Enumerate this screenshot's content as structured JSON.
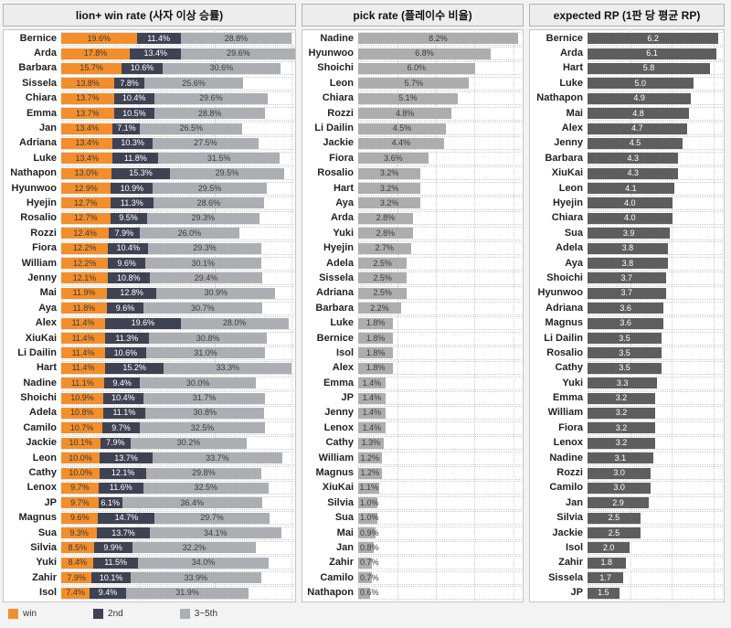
{
  "chart_data": [
    {
      "type": "bar",
      "orientation": "horizontal",
      "stacked": true,
      "title": "lion+ win rate (사자 이상 승률)",
      "unit": "%",
      "xmax": 60.5,
      "gridlines": [
        20,
        40,
        60
      ],
      "categories": [
        "Bernice",
        "Arda",
        "Barbara",
        "Sissela",
        "Chiara",
        "Emma",
        "Jan",
        "Adriana",
        "Luke",
        "Nathapon",
        "Hyunwoo",
        "Hyejin",
        "Rosalio",
        "Rozzi",
        "Fiora",
        "William",
        "Jenny",
        "Mai",
        "Aya",
        "Alex",
        "XiuKai",
        "Li Dailin",
        "Hart",
        "Nadine",
        "Shoichi",
        "Adela",
        "Camilo",
        "Jackie",
        "Leon",
        "Cathy",
        "Lenox",
        "JP",
        "Magnus",
        "Sua",
        "Silvia",
        "Yuki",
        "Zahir",
        "Isol"
      ],
      "series": [
        {
          "name": "win",
          "color": "#F28E2B",
          "label_color": "#3C3C3C",
          "values": [
            19.6,
            17.8,
            15.7,
            13.8,
            13.7,
            13.7,
            13.4,
            13.4,
            13.4,
            13.0,
            12.9,
            12.7,
            12.7,
            12.4,
            12.2,
            12.2,
            12.1,
            11.9,
            11.8,
            11.4,
            11.4,
            11.4,
            11.4,
            11.1,
            10.9,
            10.8,
            10.7,
            10.1,
            10.0,
            10.0,
            9.7,
            9.7,
            9.6,
            9.3,
            8.5,
            8.4,
            7.9,
            7.4
          ]
        },
        {
          "name": "2nd",
          "color": "#3F4253",
          "label_color": "#FFFFFF",
          "values": [
            11.4,
            13.4,
            10.6,
            7.8,
            10.4,
            10.5,
            7.1,
            10.3,
            11.8,
            15.3,
            10.9,
            11.3,
            9.5,
            7.9,
            10.4,
            9.6,
            10.8,
            12.8,
            9.6,
            19.6,
            11.3,
            10.6,
            15.2,
            9.4,
            10.4,
            11.1,
            9.7,
            7.9,
            13.7,
            12.1,
            11.6,
            6.1,
            14.7,
            13.7,
            9.9,
            11.5,
            10.1,
            9.4
          ]
        },
        {
          "name": "3~5th",
          "color": "#ACAEB3",
          "label_color": "#3C3C3C",
          "values": [
            28.8,
            29.6,
            30.6,
            25.6,
            29.6,
            28.8,
            26.5,
            27.5,
            31.5,
            29.5,
            29.5,
            28.6,
            29.3,
            26.0,
            29.3,
            30.1,
            29.4,
            30.9,
            30.7,
            28.0,
            30.8,
            31.0,
            33.3,
            30.0,
            31.7,
            30.8,
            32.5,
            30.2,
            33.7,
            29.8,
            32.5,
            36.4,
            29.7,
            34.1,
            32.2,
            34.0,
            33.9,
            31.9
          ]
        }
      ]
    },
    {
      "type": "bar",
      "orientation": "horizontal",
      "stacked": false,
      "title": "pick rate (플레이수 비율)",
      "unit": "%",
      "xmax": 8.4,
      "gridlines": [
        2,
        4,
        6,
        8
      ],
      "bar_color": "#ADADAD",
      "label_color": "#3C3C3C",
      "categories": [
        "Nadine",
        "Hyunwoo",
        "Shoichi",
        "Leon",
        "Chiara",
        "Rozzi",
        "Li Dailin",
        "Jackie",
        "Fiora",
        "Rosalio",
        "Hart",
        "Aya",
        "Arda",
        "Yuki",
        "Hyejin",
        "Adela",
        "Sissela",
        "Adriana",
        "Barbara",
        "Luke",
        "Bernice",
        "Isol",
        "Alex",
        "Emma",
        "JP",
        "Jenny",
        "Lenox",
        "Cathy",
        "William",
        "Magnus",
        "XiuKai",
        "Silvia",
        "Sua",
        "Mai",
        "Jan",
        "Zahir",
        "Camilo",
        "Nathapon"
      ],
      "values": [
        8.2,
        6.8,
        6.0,
        5.7,
        5.1,
        4.8,
        4.5,
        4.4,
        3.6,
        3.2,
        3.2,
        3.2,
        2.8,
        2.8,
        2.7,
        2.5,
        2.5,
        2.5,
        2.2,
        1.8,
        1.8,
        1.8,
        1.8,
        1.4,
        1.4,
        1.4,
        1.4,
        1.3,
        1.2,
        1.2,
        1.1,
        1.0,
        1.0,
        0.9,
        0.8,
        0.7,
        0.7,
        0.6
      ]
    },
    {
      "type": "bar",
      "orientation": "horizontal",
      "stacked": false,
      "title": "expected RP (1판 당 평균 RP)",
      "unit": "",
      "xmax": 6.4,
      "gridlines": [
        2,
        4,
        6
      ],
      "bar_color": "#5E5E5E",
      "label_color": "#FFFFFF",
      "categories": [
        "Bernice",
        "Arda",
        "Hart",
        "Luke",
        "Nathapon",
        "Mai",
        "Alex",
        "Jenny",
        "Barbara",
        "XiuKai",
        "Leon",
        "Hyejin",
        "Chiara",
        "Sua",
        "Adela",
        "Aya",
        "Shoichi",
        "Hyunwoo",
        "Adriana",
        "Magnus",
        "Li Dailin",
        "Rosalio",
        "Cathy",
        "Yuki",
        "Emma",
        "William",
        "Fiora",
        "Lenox",
        "Nadine",
        "Rozzi",
        "Camilo",
        "Jan",
        "Silvia",
        "Jackie",
        "Isol",
        "Zahir",
        "Sissela",
        "JP"
      ],
      "values": [
        6.2,
        6.1,
        5.8,
        5.0,
        4.9,
        4.8,
        4.7,
        4.5,
        4.3,
        4.3,
        4.1,
        4.0,
        4.0,
        3.9,
        3.8,
        3.8,
        3.7,
        3.7,
        3.6,
        3.6,
        3.5,
        3.5,
        3.5,
        3.3,
        3.2,
        3.2,
        3.2,
        3.2,
        3.1,
        3.0,
        3.0,
        2.9,
        2.5,
        2.5,
        2.0,
        1.8,
        1.7,
        1.5
      ]
    }
  ]
}
